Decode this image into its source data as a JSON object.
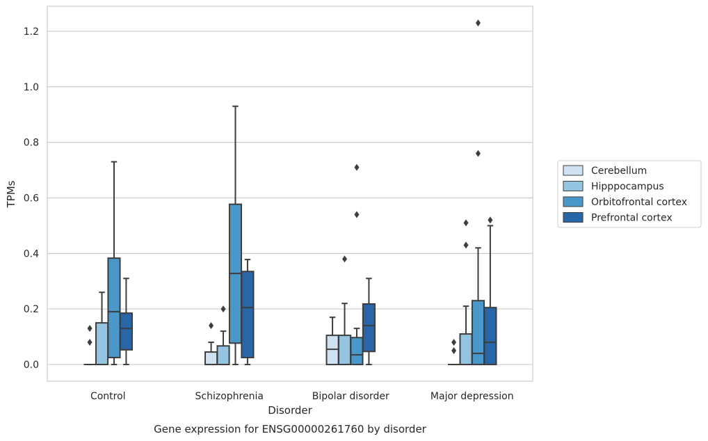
{
  "chart_data": {
    "type": "box",
    "caption": "Gene expression for ENSG00000261760 by disorder",
    "xlabel": "Disorder",
    "ylabel": "TPMs",
    "ylim": [
      -0.06,
      1.29
    ],
    "yticks": [
      0.0,
      0.2,
      0.4,
      0.6,
      0.8,
      1.0,
      1.2
    ],
    "ytick_labels": [
      "0.0",
      "0.2",
      "0.4",
      "0.6",
      "0.8",
      "1.0",
      "1.2"
    ],
    "grid": "horizontal",
    "legend_position": "right",
    "categories": [
      "Control",
      "Schizophrenia",
      "Bipolar disorder",
      "Major depression"
    ],
    "series": [
      {
        "name": "Cerebellum",
        "color": "#d0e1f2",
        "boxes": [
          {
            "q1": 0.0,
            "median": 0.0,
            "q3": 0.0,
            "whisker_low": 0.0,
            "whisker_high": 0.0,
            "outliers": [
              0.08,
              0.13
            ]
          },
          {
            "q1": 0.0,
            "median": 0.0,
            "q3": 0.045,
            "whisker_low": 0.0,
            "whisker_high": 0.08,
            "outliers": [
              0.14
            ]
          },
          {
            "q1": 0.0,
            "median": 0.055,
            "q3": 0.105,
            "whisker_low": 0.0,
            "whisker_high": 0.17,
            "outliers": []
          },
          {
            "q1": 0.0,
            "median": 0.0,
            "q3": 0.0,
            "whisker_low": 0.0,
            "whisker_high": 0.0,
            "outliers": [
              0.05,
              0.08
            ]
          }
        ]
      },
      {
        "name": "Hipppocampus",
        "color": "#94c4df",
        "boxes": [
          {
            "q1": 0.0,
            "median": 0.0,
            "q3": 0.15,
            "whisker_low": 0.0,
            "whisker_high": 0.26,
            "outliers": []
          },
          {
            "q1": 0.0,
            "median": 0.0,
            "q3": 0.067,
            "whisker_low": 0.0,
            "whisker_high": 0.12,
            "outliers": [
              0.2
            ]
          },
          {
            "q1": 0.0,
            "median": 0.0,
            "q3": 0.105,
            "whisker_low": 0.0,
            "whisker_high": 0.22,
            "outliers": [
              0.38
            ]
          },
          {
            "q1": 0.0,
            "median": 0.0,
            "q3": 0.11,
            "whisker_low": 0.0,
            "whisker_high": 0.21,
            "outliers": [
              0.43,
              0.51
            ]
          }
        ]
      },
      {
        "name": "Orbitofrontal cortex",
        "color": "#4a98c9",
        "boxes": [
          {
            "q1": 0.025,
            "median": 0.19,
            "q3": 0.383,
            "whisker_low": 0.0,
            "whisker_high": 0.73,
            "outliers": []
          },
          {
            "q1": 0.077,
            "median": 0.328,
            "q3": 0.577,
            "whisker_low": 0.0,
            "whisker_high": 0.93,
            "outliers": []
          },
          {
            "q1": 0.0,
            "median": 0.035,
            "q3": 0.097,
            "whisker_low": 0.0,
            "whisker_high": 0.13,
            "outliers": [
              0.54,
              0.71
            ]
          },
          {
            "q1": 0.0,
            "median": 0.04,
            "q3": 0.23,
            "whisker_low": 0.0,
            "whisker_high": 0.42,
            "outliers": [
              0.76,
              1.23
            ]
          }
        ]
      },
      {
        "name": "Prefrontal cortex",
        "color": "#2866a8",
        "boxes": [
          {
            "q1": 0.053,
            "median": 0.13,
            "q3": 0.185,
            "whisker_low": 0.0,
            "whisker_high": 0.31,
            "outliers": []
          },
          {
            "q1": 0.025,
            "median": 0.205,
            "q3": 0.335,
            "whisker_low": 0.0,
            "whisker_high": 0.378,
            "outliers": []
          },
          {
            "q1": 0.047,
            "median": 0.14,
            "q3": 0.218,
            "whisker_low": 0.0,
            "whisker_high": 0.31,
            "outliers": []
          },
          {
            "q1": 0.0,
            "median": 0.08,
            "q3": 0.205,
            "whisker_low": 0.0,
            "whisker_high": 0.5,
            "outliers": [
              0.52
            ]
          }
        ]
      }
    ]
  }
}
